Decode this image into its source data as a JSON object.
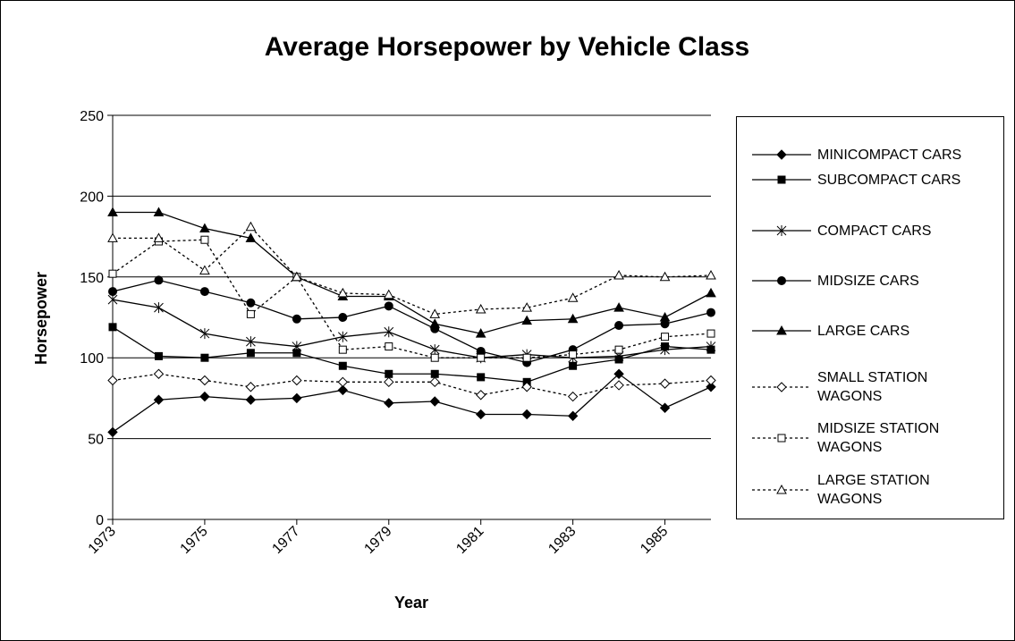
{
  "chart_data": {
    "type": "line",
    "title": "Average Horsepower by Vehicle Class",
    "x_label": "Year",
    "y_label": "Horsepower",
    "x": [
      1973,
      1974,
      1975,
      1976,
      1977,
      1978,
      1979,
      1980,
      1981,
      1982,
      1983,
      1984,
      1985,
      1986
    ],
    "xlim": [
      1973,
      1986
    ],
    "xticks": [
      1973,
      1975,
      1977,
      1979,
      1981,
      1983,
      1985
    ],
    "ylim": [
      0,
      250
    ],
    "yticks": [
      0,
      50,
      100,
      150,
      200,
      250
    ],
    "grid": true,
    "legend": "right",
    "series": [
      {
        "name": "MINICOMPACT CARS",
        "color": "#000000",
        "marker": "diamond",
        "filled": true,
        "dashed": false,
        "values": [
          54,
          74,
          76,
          74,
          75,
          80,
          72,
          73,
          65,
          65,
          64,
          90,
          69,
          82
        ]
      },
      {
        "name": "SUBCOMPACT CARS",
        "color": "#000000",
        "marker": "square",
        "filled": true,
        "dashed": false,
        "values": [
          119,
          101,
          100,
          103,
          103,
          95,
          90,
          90,
          88,
          85,
          95,
          99,
          107,
          105
        ]
      },
      {
        "name": "COMPACT CARS",
        "color": "#000000",
        "marker": "star",
        "filled": true,
        "dashed": false,
        "values": [
          136,
          131,
          115,
          110,
          107,
          113,
          116,
          105,
          100,
          102,
          100,
          101,
          105,
          107
        ]
      },
      {
        "name": "MIDSIZE CARS",
        "color": "#000000",
        "marker": "circle",
        "filled": true,
        "dashed": false,
        "values": [
          141,
          148,
          141,
          134,
          124,
          125,
          132,
          118,
          104,
          97,
          105,
          120,
          121,
          128
        ]
      },
      {
        "name": "LARGE CARS",
        "color": "#000000",
        "marker": "triangle",
        "filled": true,
        "dashed": false,
        "values": [
          190,
          190,
          180,
          174,
          150,
          138,
          138,
          121,
          115,
          123,
          124,
          131,
          125,
          140
        ]
      },
      {
        "name": "SMALL STATION WAGONS",
        "color": "#000000",
        "marker": "diamond",
        "filled": false,
        "dashed": true,
        "values": [
          86,
          90,
          86,
          82,
          86,
          85,
          85,
          85,
          77,
          82,
          76,
          83,
          84,
          86
        ]
      },
      {
        "name": "MIDSIZE STATION WAGONS",
        "color": "#000000",
        "marker": "square",
        "filled": false,
        "dashed": true,
        "values": [
          152,
          172,
          173,
          127,
          150,
          105,
          107,
          100,
          100,
          100,
          102,
          105,
          113,
          115
        ]
      },
      {
        "name": "LARGE STATION WAGONS",
        "color": "#000000",
        "marker": "triangle",
        "filled": false,
        "dashed": true,
        "values": [
          174,
          174,
          154,
          181,
          150,
          140,
          139,
          127,
          130,
          131,
          137,
          151,
          150,
          151
        ]
      }
    ]
  }
}
